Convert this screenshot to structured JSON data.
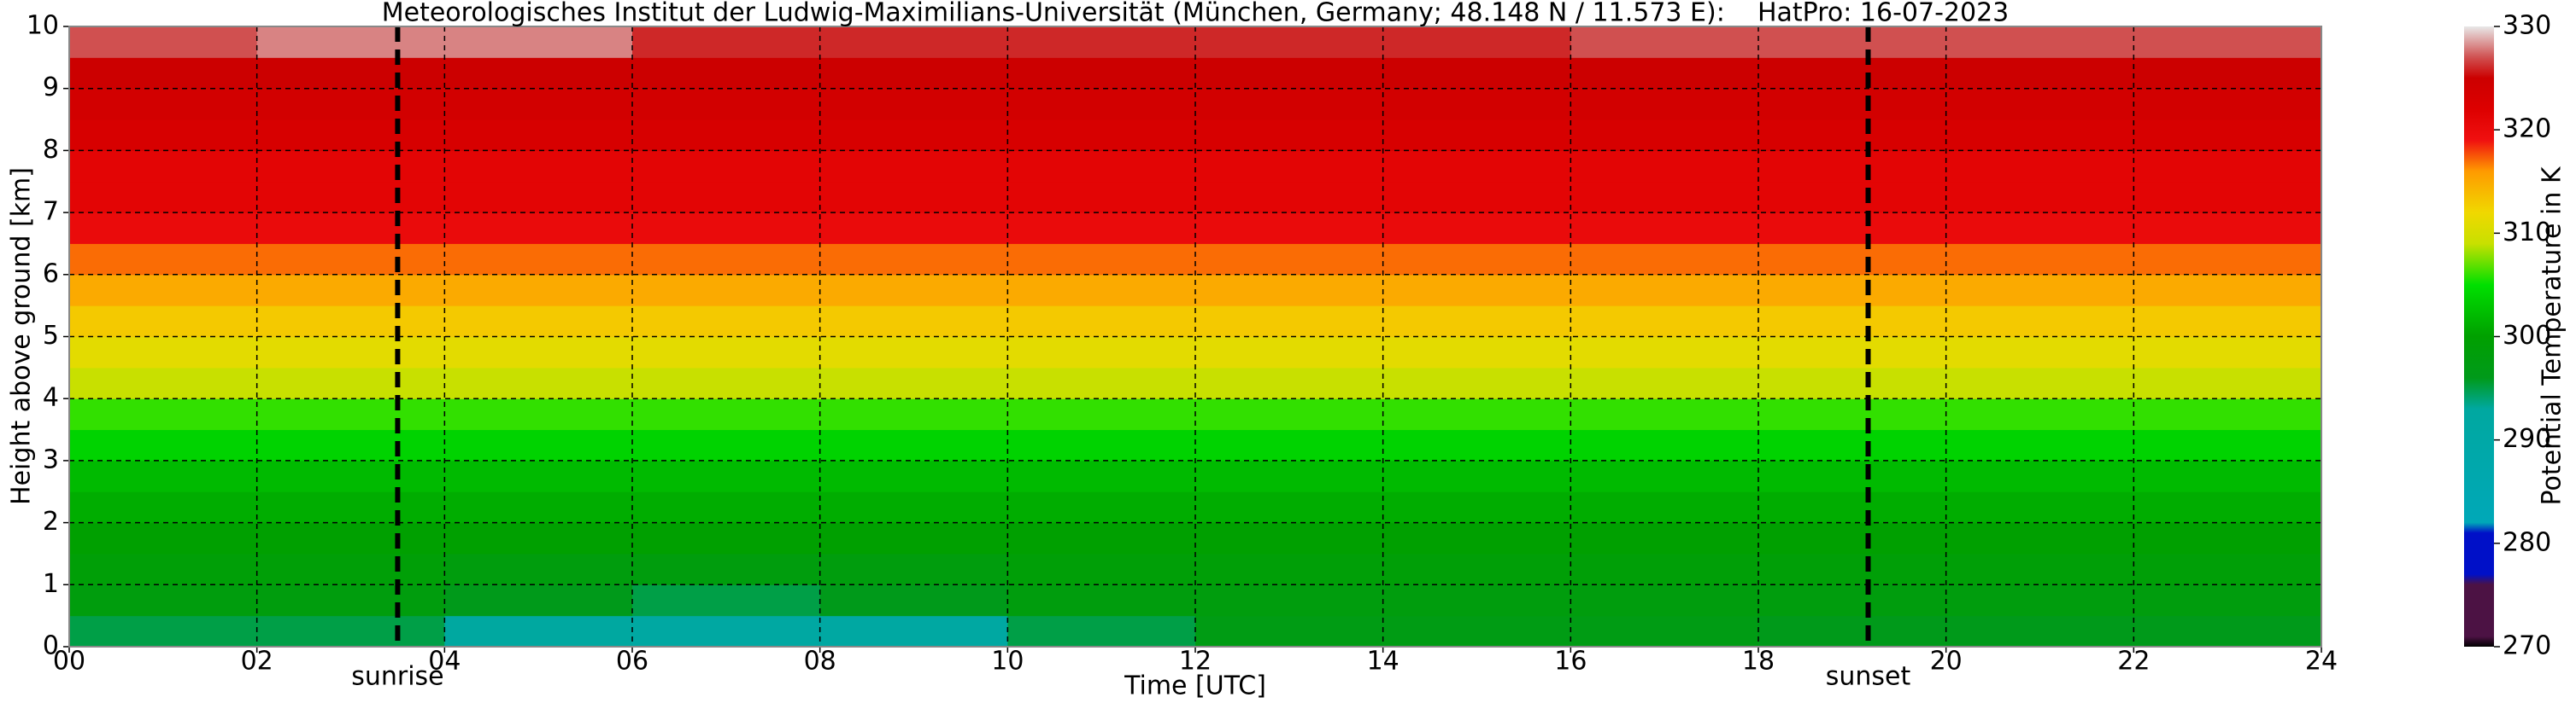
{
  "chart_data": {
    "type": "heatmap",
    "title": "Meteorologisches Institut der Ludwig-Maximilians-Universität (München, Germany; 48.148 N / 11.573 E):    HatPro: 16-07-2023",
    "x_label": "Time [UTC]",
    "y_label": "Height above ground [km]",
    "colorbar_label": "Potential Temperature in K",
    "xlim": [
      0,
      24
    ],
    "ylim": [
      0,
      10
    ],
    "clim": [
      270,
      330
    ],
    "xticks": [
      {
        "value": 0,
        "label": "00"
      },
      {
        "value": 2,
        "label": "02"
      },
      {
        "value": 4,
        "label": "04"
      },
      {
        "value": 6,
        "label": "06"
      },
      {
        "value": 8,
        "label": "08"
      },
      {
        "value": 10,
        "label": "10"
      },
      {
        "value": 12,
        "label": "12"
      },
      {
        "value": 14,
        "label": "14"
      },
      {
        "value": 16,
        "label": "16"
      },
      {
        "value": 18,
        "label": "18"
      },
      {
        "value": 20,
        "label": "20"
      },
      {
        "value": 22,
        "label": "22"
      },
      {
        "value": 24,
        "label": "24"
      }
    ],
    "yticks": [
      0,
      1,
      2,
      3,
      4,
      5,
      6,
      7,
      8,
      9,
      10
    ],
    "cticks": [
      270,
      280,
      290,
      300,
      310,
      320,
      330
    ],
    "grid": true,
    "annotations": [
      {
        "text": "sunrise",
        "x": 3.5
      },
      {
        "text": "sunset",
        "x": 19.17
      }
    ],
    "colorscale": [
      [
        270,
        "#000000"
      ],
      [
        271,
        "#4c1244"
      ],
      [
        276,
        "#4c1244"
      ],
      [
        277,
        "#0010c8"
      ],
      [
        281,
        "#0010c8"
      ],
      [
        282,
        "#00a8b8"
      ],
      [
        293,
        "#00a8a0"
      ],
      [
        296,
        "#009a1a"
      ],
      [
        300,
        "#00a000"
      ],
      [
        305,
        "#00e000"
      ],
      [
        309,
        "#c8e000"
      ],
      [
        312,
        "#f0d800"
      ],
      [
        316,
        "#ff9a00"
      ],
      [
        319,
        "#f01010"
      ],
      [
        322,
        "#dd0000"
      ],
      [
        325,
        "#cc0000"
      ],
      [
        327,
        "#d05050"
      ],
      [
        330,
        "#e8e8e8"
      ]
    ],
    "xbins": [
      0,
      2,
      4,
      6,
      8,
      10,
      12,
      14,
      16,
      18,
      20,
      22,
      24
    ],
    "ybins": [
      0,
      0.5,
      1,
      1.5,
      2,
      2.5,
      3,
      3.5,
      4,
      4.5,
      5,
      5.5,
      6,
      6.5,
      7,
      7.5,
      8,
      8.5,
      9,
      9.5,
      10
    ],
    "z": [
      [
        295,
        295,
        293,
        292,
        292,
        295,
        297,
        297,
        297,
        296,
        296,
        296
      ],
      [
        298,
        298,
        296,
        295,
        296,
        298,
        298,
        298,
        298,
        298,
        298,
        298
      ],
      [
        299,
        299,
        298,
        298,
        298,
        299,
        299,
        299,
        299,
        299,
        299,
        299
      ],
      [
        300,
        300,
        300,
        300,
        300,
        300,
        300,
        300,
        300,
        300,
        300,
        300
      ],
      [
        301,
        301,
        301,
        301,
        301,
        301,
        301,
        301,
        301,
        301,
        301,
        301
      ],
      [
        302,
        302,
        302,
        302,
        302,
        302,
        302,
        302,
        302,
        302,
        302,
        302
      ],
      [
        304,
        304,
        304,
        304,
        304,
        304,
        304,
        304,
        304,
        304,
        304,
        304
      ],
      [
        306,
        306,
        306,
        306,
        306,
        306,
        306,
        306,
        306,
        306,
        306,
        306
      ],
      [
        309,
        309,
        309,
        309,
        309,
        309,
        309,
        309,
        309,
        309,
        309,
        309
      ],
      [
        311,
        311,
        311,
        311,
        311,
        311,
        311,
        311,
        311,
        311,
        311,
        311
      ],
      [
        313,
        313,
        313,
        313,
        313,
        313,
        313,
        313,
        313,
        313,
        313,
        313
      ],
      [
        315,
        315,
        315,
        315,
        315,
        315,
        315,
        315,
        315,
        315,
        315,
        315
      ],
      [
        317,
        317,
        317,
        317,
        317,
        317,
        317,
        317,
        317,
        317,
        317,
        317
      ],
      [
        320,
        320,
        320,
        320,
        320,
        320,
        320,
        320,
        320,
        320,
        320,
        320
      ],
      [
        321,
        321,
        321,
        321,
        321,
        321,
        321,
        321,
        321,
        321,
        321,
        321
      ],
      [
        321,
        321,
        321,
        321,
        321,
        321,
        321,
        321,
        321,
        321,
        321,
        321
      ],
      [
        323,
        323,
        323,
        323,
        323,
        323,
        323,
        323,
        323,
        323,
        323,
        323
      ],
      [
        324,
        324,
        324,
        324,
        324,
        324,
        324,
        324,
        324,
        324,
        324,
        324
      ],
      [
        325,
        325,
        325,
        325,
        325,
        325,
        325,
        325,
        325,
        325,
        325,
        325
      ],
      [
        327,
        328,
        328,
        326,
        326,
        326,
        326,
        326,
        327,
        327,
        327,
        327
      ]
    ]
  }
}
